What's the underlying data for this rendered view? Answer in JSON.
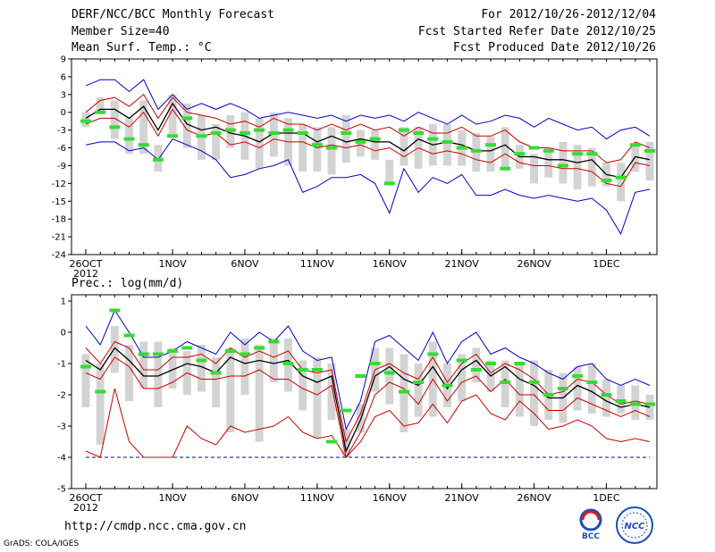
{
  "header": {
    "title": "DERF/NCC/BCC Monthly Forecast",
    "member_size": "Member Size=40",
    "variable": "Mean Surf. Temp.: °C",
    "forecast_period": "For 2012/10/26-2012/12/04",
    "fcst_started": "Fcst Started Refer Date 2012/10/25",
    "fcst_produced": "Fcst Produced Date 2012/10/26"
  },
  "footer": {
    "url": "http://cmdp.ncc.cma.gov.cn",
    "grads": "GrADS: COLA/IGES",
    "logo_bcc": "BCC",
    "logo_ncc": "NCC"
  },
  "colors": {
    "envelope": "#0000cc",
    "spread": "#cc0000",
    "mean": "#000000",
    "observed": "#33dd33",
    "box": "#d3d3d3"
  },
  "chart_data": [
    {
      "type": "line",
      "title": "Mean Surf. Temp.: °C",
      "x": [
        0,
        1,
        2,
        3,
        4,
        5,
        6,
        7,
        8,
        9,
        10,
        11,
        12,
        13,
        14,
        15,
        16,
        17,
        18,
        19,
        20,
        21,
        22,
        23,
        24,
        25,
        26,
        27,
        28,
        29,
        30,
        31,
        32,
        33,
        34,
        35,
        36,
        37,
        38,
        39
      ],
      "xticks": [
        {
          "x": 0,
          "label": "26OCT",
          "sub": "2012"
        },
        {
          "x": 6,
          "label": "1NOV"
        },
        {
          "x": 11,
          "label": "6NOV"
        },
        {
          "x": 16,
          "label": "11NOV"
        },
        {
          "x": 21,
          "label": "16NOV"
        },
        {
          "x": 26,
          "label": "21NOV"
        },
        {
          "x": 31,
          "label": "26NOV"
        },
        {
          "x": 36,
          "label": "1DEC"
        }
      ],
      "yticks": [
        9,
        6,
        3,
        0,
        -3,
        -6,
        -9,
        -12,
        -15,
        -18,
        -21,
        -24
      ],
      "ylim": [
        -24,
        9
      ],
      "series": [
        {
          "name": "max",
          "role": "envelope",
          "values": [
            4.5,
            5.5,
            5.5,
            3.5,
            5.5,
            0.5,
            3,
            0.5,
            1.5,
            0.5,
            1.5,
            0.5,
            -1,
            -0.5,
            0,
            -0.5,
            -1,
            -0.5,
            -1.5,
            -0.5,
            -1,
            -0.5,
            -1.5,
            0,
            -1,
            -2,
            -0.5,
            -2,
            -1.5,
            -0.5,
            -1,
            -2.5,
            -1,
            -2,
            -3,
            -2.5,
            -4.5,
            -3,
            -2.5,
            -4
          ]
        },
        {
          "name": "upper",
          "role": "spread",
          "values": [
            0,
            2,
            2.5,
            1,
            3,
            -1,
            2.5,
            0,
            -0.5,
            -1,
            -2,
            -1.5,
            -2.5,
            -1,
            -2,
            -2,
            -3,
            -2,
            -3,
            -2,
            -3,
            -2.5,
            -4,
            -2.5,
            -3.5,
            -3.5,
            -2.5,
            -4,
            -4,
            -3,
            -5,
            -6,
            -6,
            -6.5,
            -6.5,
            -6.5,
            -8.5,
            -8,
            -5,
            -6
          ]
        },
        {
          "name": "mean",
          "role": "mean",
          "values": [
            -1,
            0.5,
            0.5,
            -1,
            1,
            -3,
            1.5,
            -2,
            -3,
            -2.5,
            -3.5,
            -4,
            -5,
            -3.5,
            -3.5,
            -3.5,
            -5,
            -4,
            -5,
            -4.5,
            -5,
            -5,
            -6.5,
            -4.5,
            -5.5,
            -5,
            -5.5,
            -6.5,
            -6.5,
            -5.5,
            -7.5,
            -7.5,
            -8,
            -8,
            -8.5,
            -8,
            -10.5,
            -11,
            -7.5,
            -8
          ]
        },
        {
          "name": "lower",
          "role": "spread",
          "values": [
            -2,
            -1,
            -1,
            -2.5,
            0,
            -4,
            0.5,
            -3,
            -4,
            -3.5,
            -5.5,
            -5,
            -6,
            -4.5,
            -5,
            -5,
            -6,
            -5.5,
            -6,
            -5.5,
            -6.5,
            -6,
            -7.5,
            -6,
            -7,
            -6.5,
            -7,
            -8,
            -8.5,
            -7,
            -8.5,
            -9,
            -9,
            -9.5,
            -9.5,
            -10,
            -12,
            -12.5,
            -8.5,
            -9
          ]
        },
        {
          "name": "min",
          "role": "envelope",
          "values": [
            -5.5,
            -5,
            -5,
            -6.5,
            -6,
            -8,
            -4.5,
            -5.5,
            -6.5,
            -8,
            -11,
            -10.5,
            -9.5,
            -9,
            -8,
            -13.5,
            -12.5,
            -11,
            -11,
            -10.5,
            -12,
            -17,
            -9.5,
            -13.5,
            -11,
            -12,
            -10.5,
            -14,
            -14,
            -13,
            -14,
            -14.5,
            -14,
            -14.5,
            -15,
            -14.5,
            -16.5,
            -20.5,
            -13.5,
            -13
          ]
        }
      ],
      "boxes": [
        [
          -2.5,
          0
        ],
        [
          0,
          2.5
        ],
        [
          -4.5,
          2
        ],
        [
          -7,
          -1
        ],
        [
          -7,
          2
        ],
        [
          -10,
          -5.5
        ],
        [
          -4,
          3
        ],
        [
          -6,
          1.5
        ],
        [
          -8,
          -0.5
        ],
        [
          -8,
          -2
        ],
        [
          -6,
          -0.5
        ],
        [
          -8,
          0
        ],
        [
          -9.5,
          -1
        ],
        [
          -7.5,
          0
        ],
        [
          -9,
          -1
        ],
        [
          -10,
          -2
        ],
        [
          -10,
          -2.5
        ],
        [
          -10.5,
          -2.5
        ],
        [
          -8.5,
          -0.5
        ],
        [
          -7.5,
          -3
        ],
        [
          -8,
          -3
        ],
        [
          -12,
          -8
        ],
        [
          -9,
          -2.5
        ],
        [
          -9.5,
          -2.5
        ],
        [
          -9,
          -2
        ],
        [
          -9,
          -2
        ],
        [
          -9,
          -3
        ],
        [
          -10,
          -3.5
        ],
        [
          -10,
          -4
        ],
        [
          -9.5,
          -2.5
        ],
        [
          -9.5,
          -5.5
        ],
        [
          -12,
          -7
        ],
        [
          -11,
          -6
        ],
        [
          -12,
          -5
        ],
        [
          -13,
          -5.5
        ],
        [
          -12.5,
          -6
        ],
        [
          -12.5,
          -8.5
        ],
        [
          -15,
          -8.5
        ],
        [
          -10,
          -5.5
        ],
        [
          -11.5,
          -5
        ]
      ],
      "observed": [
        -1.5,
        0,
        -2.5,
        -4.5,
        -5.5,
        -8,
        -4,
        -1,
        -4,
        -3.5,
        -3,
        -3.5,
        -3,
        -3.5,
        -3,
        -3.5,
        -5.5,
        -6,
        -3.5,
        -5,
        -4.5,
        -12,
        -3,
        -3.5,
        -4.5,
        -5,
        -6,
        -6.5,
        -5.5,
        -9.5,
        -7,
        -6,
        -6.5,
        -9,
        -7,
        -7,
        -11.5,
        -11,
        -5.5,
        -6.5
      ]
    },
    {
      "type": "line",
      "title": "Prec.: log(mm/d)",
      "x": [
        0,
        1,
        2,
        3,
        4,
        5,
        6,
        7,
        8,
        9,
        10,
        11,
        12,
        13,
        14,
        15,
        16,
        17,
        18,
        19,
        20,
        21,
        22,
        23,
        24,
        25,
        26,
        27,
        28,
        29,
        30,
        31,
        32,
        33,
        34,
        35,
        36,
        37,
        38,
        39
      ],
      "xticks": [
        {
          "x": 0,
          "label": "26OCT",
          "sub": "2012"
        },
        {
          "x": 6,
          "label": "1NOV"
        },
        {
          "x": 11,
          "label": "6NOV"
        },
        {
          "x": 16,
          "label": "11NOV"
        },
        {
          "x": 21,
          "label": "16NOV"
        },
        {
          "x": 26,
          "label": "21NOV"
        },
        {
          "x": 31,
          "label": "26NOV"
        },
        {
          "x": 36,
          "label": "1DEC"
        }
      ],
      "yticks": [
        1,
        0,
        -1,
        -2,
        -3,
        -4,
        -5
      ],
      "ylim": [
        -5,
        1.2
      ],
      "baseline": -4,
      "series": [
        {
          "name": "max",
          "role": "envelope",
          "values": [
            0.2,
            -0.4,
            0.7,
            0,
            -0.8,
            -0.8,
            -0.6,
            -0.3,
            -0.5,
            -0.7,
            0,
            -0.4,
            0,
            -0.3,
            0.2,
            -0.6,
            -0.9,
            -0.8,
            -3.1,
            -2.2,
            -0.3,
            -0.1,
            -0.5,
            -0.9,
            0,
            -1,
            -0.3,
            0,
            -0.7,
            -0.5,
            -0.8,
            -1,
            -1.3,
            -1.5,
            -1.1,
            -1,
            -1.5,
            -1.7,
            -1.5,
            -1.7
          ]
        },
        {
          "name": "upper",
          "role": "spread",
          "values": [
            -0.5,
            -1,
            -0.3,
            -0.5,
            -1.2,
            -1.2,
            -0.8,
            -0.8,
            -0.7,
            -1,
            -0.5,
            -0.8,
            -0.6,
            -0.8,
            -0.6,
            -1.2,
            -1.3,
            -1.2,
            -3.5,
            -2.6,
            -1.2,
            -1,
            -1.3,
            -1.5,
            -0.8,
            -1.6,
            -1,
            -0.7,
            -1.3,
            -1,
            -1.2,
            -1.5,
            -2,
            -1.9,
            -1.5,
            -1.6,
            -2,
            -2.3,
            -2.2,
            -2.3
          ]
        },
        {
          "name": "mean",
          "role": "mean",
          "values": [
            -0.9,
            -1.2,
            -0.5,
            -0.9,
            -1.4,
            -1.4,
            -1.2,
            -1,
            -1.1,
            -1.3,
            -0.8,
            -1,
            -0.9,
            -1,
            -0.9,
            -1.4,
            -1.6,
            -1.4,
            -3.8,
            -2.8,
            -1.4,
            -1.1,
            -1.5,
            -1.7,
            -1.1,
            -1.8,
            -1.2,
            -0.9,
            -1.4,
            -1.1,
            -1.5,
            -1.7,
            -2.1,
            -2.1,
            -1.7,
            -1.9,
            -2.2,
            -2.4,
            -2.3,
            -2.4
          ]
        },
        {
          "name": "lower",
          "role": "spread",
          "values": [
            -1.3,
            -1.5,
            -0.8,
            -1.1,
            -1.8,
            -1.8,
            -1.6,
            -1.3,
            -1.5,
            -1.5,
            -1.4,
            -1.4,
            -1.2,
            -1.5,
            -1.5,
            -1.8,
            -2,
            -1.7,
            -4,
            -3.2,
            -2,
            -1.6,
            -1.8,
            -2.3,
            -1.5,
            -2.2,
            -1.6,
            -1.4,
            -1.9,
            -1.5,
            -2,
            -2,
            -2.5,
            -2.5,
            -2.1,
            -2.3,
            -2.5,
            -2.7,
            -2.5,
            -2.7
          ]
        },
        {
          "name": "low",
          "role": "spread",
          "values": [
            -3.8,
            -4,
            -1.8,
            -3.5,
            -4,
            -4,
            -4,
            -3,
            -3.4,
            -3.6,
            -3,
            -3.2,
            -3.1,
            -3,
            -2.7,
            -3.2,
            -3.4,
            -3.3,
            -4,
            -3.5,
            -2.7,
            -2.5,
            -3,
            -2.9,
            -2.3,
            -2.9,
            -2.2,
            -2,
            -2.6,
            -2.8,
            -2.2,
            -2.6,
            -3.1,
            -3,
            -2.8,
            -3,
            -3.4,
            -3.5,
            -3.4,
            -3.5
          ]
        }
      ],
      "boxes": [
        [
          -2.4,
          -0.7
        ],
        [
          -3.6,
          -1
        ],
        [
          -1.3,
          0.2
        ],
        [
          -2.2,
          -0.4
        ],
        [
          -1.8,
          -0.3
        ],
        [
          -2.4,
          -0.3
        ],
        [
          -1.8,
          -0.5
        ],
        [
          -2,
          -0.6
        ],
        [
          -1.9,
          -0.4
        ],
        [
          -2.4,
          -0.8
        ],
        [
          -3.2,
          -0.5
        ],
        [
          -2,
          -0.2
        ],
        [
          -3.5,
          -0.4
        ],
        [
          -1.6,
          -0.2
        ],
        [
          -1.9,
          -0.2
        ],
        [
          -2.5,
          -0.9
        ],
        [
          -3.4,
          -0.8
        ],
        [
          -2.8,
          -1
        ],
        [
          -4,
          -3.1
        ],
        [
          -3.2,
          -2.3
        ],
        [
          -1.9,
          -0.5
        ],
        [
          -2.3,
          -0.5
        ],
        [
          -3.2,
          -0.7
        ],
        [
          -2.7,
          -1
        ],
        [
          -2.7,
          -0.3
        ],
        [
          -2.4,
          -1
        ],
        [
          -2.2,
          -0.7
        ],
        [
          -1.6,
          -0.5
        ],
        [
          -1.9,
          -0.9
        ],
        [
          -2.4,
          -0.9
        ],
        [
          -2.7,
          -1
        ],
        [
          -3,
          -0.9
        ],
        [
          -2.8,
          -1.2
        ],
        [
          -2.9,
          -1.3
        ],
        [
          -2.5,
          -1.1
        ],
        [
          -2.6,
          -1
        ],
        [
          -2.7,
          -1.5
        ],
        [
          -2.6,
          -1.7
        ],
        [
          -2.8,
          -1.7
        ],
        [
          -2.8,
          -2
        ]
      ],
      "observed": [
        -1.1,
        -1.9,
        0.7,
        -0.1,
        -0.7,
        -0.7,
        -0.6,
        -0.5,
        -0.9,
        -1.3,
        -0.6,
        -0.7,
        -0.5,
        -0.3,
        -1,
        -1.2,
        -1.2,
        -3.5,
        -2.5,
        -1.4,
        -1,
        -1.3,
        -1.9,
        -1.6,
        -0.7,
        -1.7,
        -0.9,
        -1.2,
        -1,
        -1.6,
        -1,
        -1.6,
        -2,
        -1.8,
        -1.4,
        -1.6,
        -2,
        -2.2,
        -2.3,
        -2.3
      ]
    }
  ],
  "panels": {
    "top_ylabel_unit": "°C",
    "bottom_title": "Prec.: log(mm/d)"
  }
}
